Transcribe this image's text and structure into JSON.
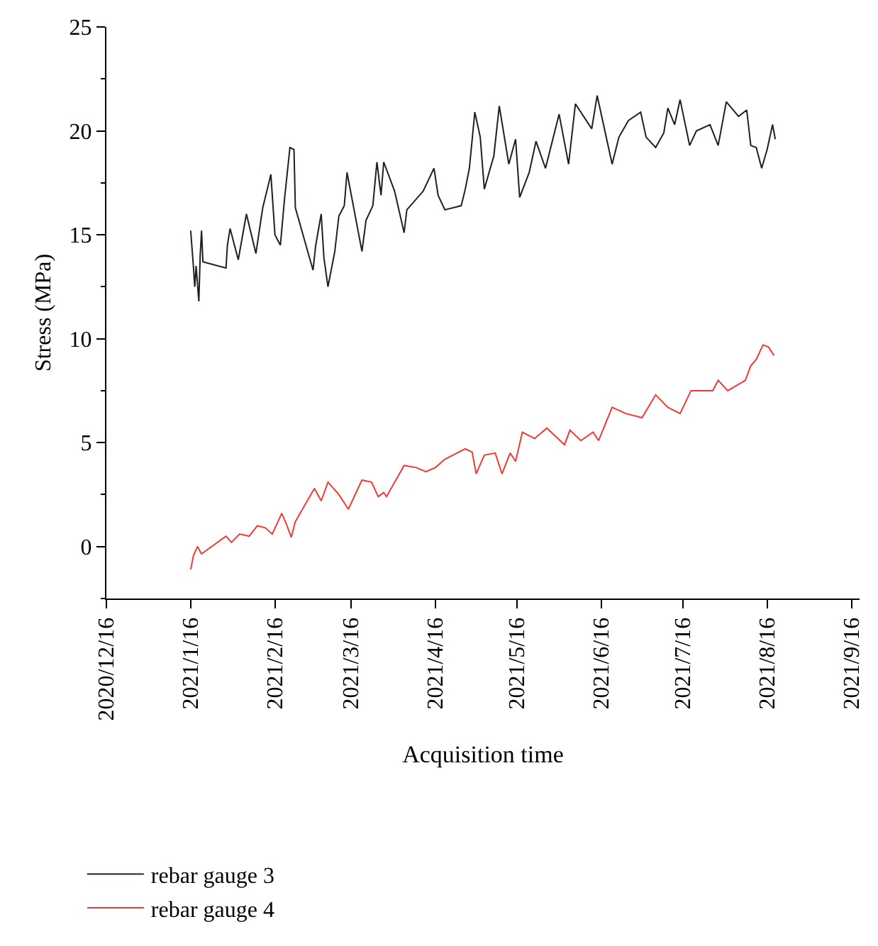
{
  "chart_data": {
    "type": "line",
    "xlabel": "Acquisition time",
    "ylabel": "Stress (MPa)",
    "xlim": [
      "2020-12-16",
      "2021-09-19"
    ],
    "ylim": [
      -2.5,
      25
    ],
    "xticks": [
      {
        "value": "2020-12-16",
        "label": "2020/12/16"
      },
      {
        "value": "2021-01-16",
        "label": "2021/1/16"
      },
      {
        "value": "2021-02-16",
        "label": "2021/2/16"
      },
      {
        "value": "2021-03-16",
        "label": "2021/3/16"
      },
      {
        "value": "2021-04-16",
        "label": "2021/4/16"
      },
      {
        "value": "2021-05-16",
        "label": "2021/5/16"
      },
      {
        "value": "2021-06-16",
        "label": "2021/6/16"
      },
      {
        "value": "2021-07-16",
        "label": "2021/7/16"
      },
      {
        "value": "2021-08-16",
        "label": "2021/8/16"
      },
      {
        "value": "2021-09-16",
        "label": "2021/9/16"
      }
    ],
    "yticks": [
      0,
      5,
      10,
      15,
      20,
      25
    ],
    "legend": "bottom left",
    "marker": "none",
    "line_style": "solid",
    "series": [
      {
        "name": "rebar gauge 3",
        "color": "#231f20",
        "x": [
          "2021-01-16",
          "2021-01-17",
          "2021-01-17T12:00",
          "2021-01-18",
          "2021-01-19",
          "2021-01-19T12:00",
          "2021-01-20",
          "2021-01-20T12:00",
          "2021-01-29",
          "2021-01-29T12:00",
          "2021-01-30T12:00",
          "2021-02-02T12:00",
          "2021-02-05T12:00",
          "2021-02-09",
          "2021-02-11T12:00",
          "2021-02-14T12:00",
          "2021-02-16",
          "2021-02-18",
          "2021-02-19T12:00",
          "2021-02-21T12:00",
          "2021-02-23",
          "2021-02-23T12:00",
          "2021-03-02",
          "2021-03-03",
          "2021-03-05",
          "2021-03-06",
          "2021-03-07T12:00",
          "2021-03-10",
          "2021-03-11T12:00",
          "2021-03-13T12:00",
          "2021-03-14T12:00",
          "2021-03-20",
          "2021-03-21T12:00",
          "2021-03-24",
          "2021-03-25T12:00",
          "2021-03-27",
          "2021-03-28",
          "2021-04-01",
          "2021-04-04T12:00",
          "2021-04-05T12:00",
          "2021-04-11T12:00",
          "2021-04-15T12:00",
          "2021-04-17",
          "2021-04-19T12:00",
          "2021-04-25T12:00",
          "2021-04-27",
          "2021-04-28T12:00",
          "2021-04-30T12:00",
          "2021-05-02T12:00",
          "2021-05-04",
          "2021-05-07T12:00",
          "2021-05-09T12:00",
          "2021-05-13",
          "2021-05-15T12:00",
          "2021-05-17",
          "2021-05-20T12:00",
          "2021-05-23",
          "2021-05-26T12:00",
          "2021-05-31T12:00",
          "2021-06-04",
          "2021-06-06T12:00",
          "2021-06-12T12:00",
          "2021-06-14T12:00",
          "2021-06-20",
          "2021-06-22T12:00",
          "2021-06-26",
          "2021-06-30T12:00",
          "2021-07-02T12:00",
          "2021-07-06",
          "2021-07-09",
          "2021-07-10T12:00",
          "2021-07-13",
          "2021-07-15",
          "2021-07-18T12:00",
          "2021-07-21",
          "2021-07-26",
          "2021-07-29",
          "2021-08-01",
          "2021-08-05T12:00",
          "2021-08-08T12:00",
          "2021-08-10",
          "2021-08-12",
          "2021-08-14",
          "2021-08-16",
          "2021-08-18",
          "2021-08-19"
        ],
        "values": [
          15.2,
          13.5,
          12.5,
          13.5,
          11.8,
          14.0,
          15.2,
          13.7,
          13.4,
          14.5,
          15.3,
          13.8,
          16.0,
          14.1,
          16.3,
          17.9,
          15.0,
          14.5,
          16.7,
          19.2,
          19.1,
          16.3,
          13.3,
          14.5,
          16.0,
          13.9,
          12.5,
          14.2,
          15.9,
          16.4,
          18.0,
          14.2,
          15.7,
          16.4,
          18.5,
          16.9,
          18.5,
          17.1,
          15.1,
          16.2,
          17.1,
          18.2,
          16.9,
          16.2,
          16.4,
          17.2,
          18.2,
          20.9,
          19.7,
          17.2,
          18.8,
          21.2,
          18.4,
          19.6,
          16.8,
          18.0,
          19.5,
          18.2,
          20.8,
          18.4,
          21.3,
          20.1,
          21.7,
          18.4,
          19.7,
          20.5,
          20.9,
          19.7,
          19.2,
          19.9,
          21.1,
          20.3,
          21.5,
          19.3,
          20.0,
          20.3,
          19.3,
          21.4,
          20.7,
          21.0,
          19.3,
          19.2,
          18.2,
          19.1,
          20.3,
          19.6
        ]
      },
      {
        "name": "rebar gauge 4",
        "color": "#ef3b36",
        "x": [
          "2021-01-16",
          "2021-01-17",
          "2021-01-18T12:00",
          "2021-01-20",
          "2021-01-29",
          "2021-01-31",
          "2021-02-03",
          "2021-02-06T12:00",
          "2021-02-09T12:00",
          "2021-02-12T12:00",
          "2021-02-15",
          "2021-02-18T12:00",
          "2021-02-20",
          "2021-02-22",
          "2021-02-23T12:00",
          "2021-03-02T12:00",
          "2021-03-05",
          "2021-03-07T12:00",
          "2021-03-11T12:00",
          "2021-03-15",
          "2021-03-20",
          "2021-03-23T12:00",
          "2021-03-26",
          "2021-03-28",
          "2021-03-29",
          "2021-04-04T12:00",
          "2021-04-09",
          "2021-04-12T12:00",
          "2021-04-16",
          "2021-04-19T12:00",
          "2021-04-27",
          "2021-04-29T12:00",
          "2021-05-01",
          "2021-05-04",
          "2021-05-08",
          "2021-05-10T12:00",
          "2021-05-13T12:00",
          "2021-05-15T12:00",
          "2021-05-18",
          "2021-05-22T12:00",
          "2021-05-27",
          "2021-06-02T12:00",
          "2021-06-04T12:00",
          "2021-06-08T12:00",
          "2021-06-13",
          "2021-06-15",
          "2021-06-20",
          "2021-06-25",
          "2021-07-01",
          "2021-07-06",
          "2021-07-10T12:00",
          "2021-07-15",
          "2021-07-19",
          "2021-07-27",
          "2021-07-29",
          "2021-08-01T12:00",
          "2021-08-08",
          "2021-08-10",
          "2021-08-12",
          "2021-08-14T12:00",
          "2021-08-16T12:00",
          "2021-08-18T12:00"
        ],
        "values": [
          -1.1,
          -0.45,
          0.0,
          -0.35,
          0.5,
          0.2,
          0.6,
          0.5,
          1.0,
          0.9,
          0.6,
          1.6,
          1.15,
          0.45,
          1.2,
          2.8,
          2.2,
          3.1,
          2.5,
          1.8,
          3.2,
          3.1,
          2.4,
          2.6,
          2.4,
          3.9,
          3.8,
          3.6,
          3.8,
          4.2,
          4.7,
          4.55,
          3.5,
          4.4,
          4.5,
          3.5,
          4.5,
          4.1,
          5.5,
          5.2,
          5.7,
          4.9,
          5.6,
          5.1,
          5.5,
          5.1,
          6.7,
          6.4,
          6.2,
          7.3,
          6.7,
          6.4,
          7.5,
          7.5,
          8.0,
          7.5,
          8.0,
          8.7,
          9.0,
          9.7,
          9.6,
          9.2
        ]
      }
    ]
  }
}
